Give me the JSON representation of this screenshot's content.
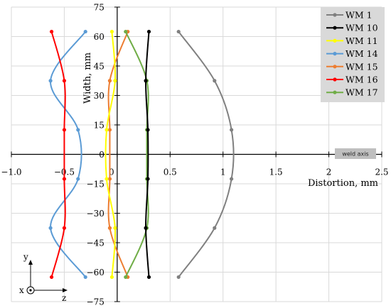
{
  "chart_data": {
    "type": "line",
    "title": "",
    "xlabel": "Distortion, mm",
    "ylabel": "Width, mm",
    "xlim": [
      -1.0,
      2.5
    ],
    "ylim": [
      -75,
      75
    ],
    "x_ticks": [
      "−1.0",
      "−0.5",
      "0",
      "0.5",
      "1",
      "1.5",
      "2",
      "2.5"
    ],
    "y_ticks": [
      "75",
      "60",
      "45",
      "30",
      "15",
      "0",
      "−15",
      "−30",
      "−45",
      "−60",
      "−75"
    ],
    "grid": true,
    "legend_position": "top-right",
    "annotation": "weld axis",
    "coordinate_labels": {
      "x": "x",
      "y": "y",
      "z": "z"
    },
    "series": [
      {
        "name": "WM 1",
        "color": "#808080",
        "points": [
          [
            0.58,
            62.5
          ],
          [
            0.92,
            37.5
          ],
          [
            1.08,
            12.5
          ],
          [
            1.08,
            -12.5
          ],
          [
            0.92,
            -37.5
          ],
          [
            0.58,
            -62.5
          ]
        ]
      },
      {
        "name": "WM 10",
        "color": "#000000",
        "points": [
          [
            0.3,
            62.5
          ],
          [
            0.27,
            37.5
          ],
          [
            0.29,
            12.5
          ],
          [
            0.29,
            -12.5
          ],
          [
            0.27,
            -37.5
          ],
          [
            0.3,
            -62.5
          ]
        ]
      },
      {
        "name": "WM 11",
        "color": "#ffff00",
        "points": [
          [
            -0.05,
            62.5
          ],
          [
            -0.02,
            37.5
          ],
          [
            -0.1,
            12.5
          ],
          [
            -0.1,
            -12.5
          ],
          [
            -0.02,
            -37.5
          ],
          [
            -0.05,
            -62.5
          ]
        ]
      },
      {
        "name": "WM 14",
        "color": "#5b9bd5",
        "points": [
          [
            -0.3,
            62.5
          ],
          [
            -0.63,
            37.5
          ],
          [
            -0.37,
            12.5
          ],
          [
            -0.37,
            -12.5
          ],
          [
            -0.63,
            -37.5
          ],
          [
            -0.3,
            -62.5
          ]
        ]
      },
      {
        "name": "WM 15",
        "color": "#ed7d31",
        "points": [
          [
            0.1,
            62.5
          ],
          [
            -0.07,
            37.5
          ],
          [
            -0.07,
            12.5
          ],
          [
            -0.07,
            -12.5
          ],
          [
            -0.07,
            -37.5
          ],
          [
            0.1,
            -62.5
          ]
        ]
      },
      {
        "name": "WM 16",
        "color": "#ff0000",
        "points": [
          [
            -0.62,
            62.5
          ],
          [
            -0.5,
            37.5
          ],
          [
            -0.5,
            12.5
          ],
          [
            -0.5,
            -12.5
          ],
          [
            -0.5,
            -37.5
          ],
          [
            -0.62,
            -62.5
          ]
        ]
      },
      {
        "name": "WM 17",
        "color": "#70ad47",
        "points": [
          [
            0.08,
            62.5
          ],
          [
            0.28,
            37.5
          ],
          [
            0.28,
            12.5
          ],
          [
            0.28,
            -12.5
          ],
          [
            0.28,
            -37.5
          ],
          [
            0.08,
            -62.5
          ]
        ]
      }
    ]
  }
}
